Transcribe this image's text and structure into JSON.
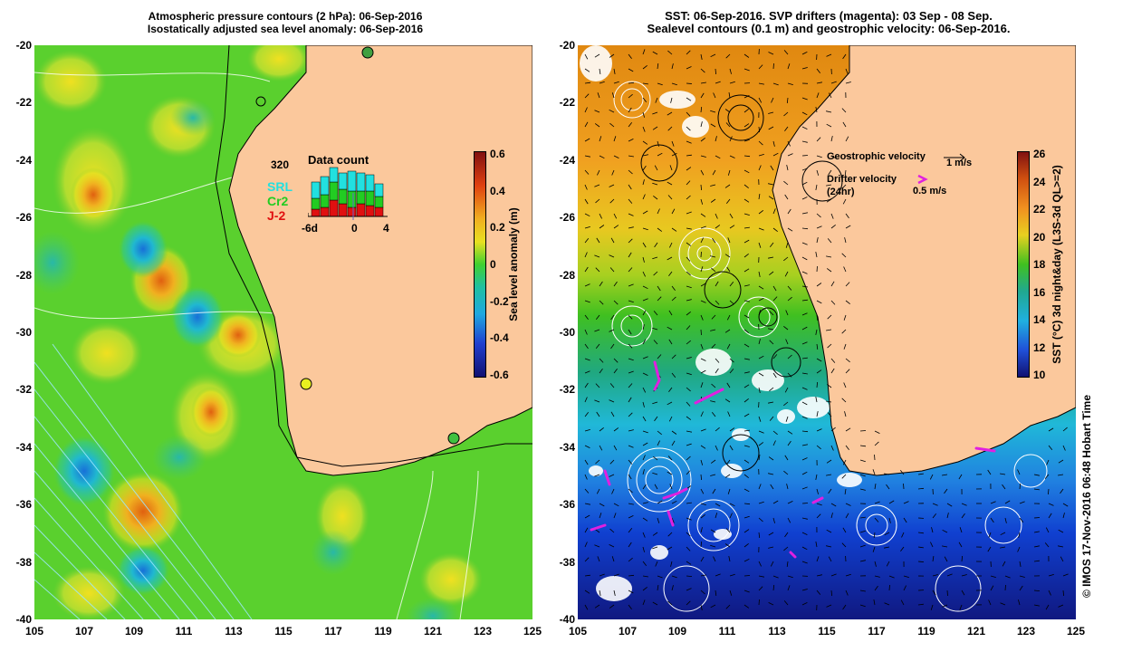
{
  "left_panel": {
    "title_line1": "Atmospheric pressure contours (2 hPa): 06-Sep-2016",
    "title_line2": "Isostatically adjusted sea level anomaly: 06-Sep-2016",
    "y_ticks": [
      "-20",
      "-22",
      "-24",
      "-26",
      "-28",
      "-30",
      "-32",
      "-34",
      "-36",
      "-38",
      "-40"
    ],
    "x_ticks": [
      "105",
      "107",
      "109",
      "111",
      "113",
      "115",
      "117",
      "119",
      "121",
      "123",
      "125"
    ],
    "colorbar": {
      "label": "Sea level anomaly (m)",
      "ticks": [
        "0.6",
        "0.4",
        "0.2",
        "0",
        "-0.2",
        "-0.4",
        "-0.6"
      ],
      "range": [
        -0.6,
        0.6
      ]
    },
    "inset": {
      "title": "Data count",
      "max_label": "320",
      "series": [
        {
          "name": "SRL",
          "color": "#22e0e0"
        },
        {
          "name": "Cr2",
          "color": "#22cc22"
        },
        {
          "name": "J-2",
          "color": "#e01010"
        }
      ],
      "x_labels": [
        "-6d",
        "0",
        "4"
      ]
    },
    "colors": {
      "land": "#fbc89c",
      "ocean_base": "#5ad02e"
    }
  },
  "right_panel": {
    "title_line1": "SST: 06-Sep-2016. SVP drifters (magenta): 03 Sep - 08 Sep.",
    "title_line2": "Sealevel contours (0.1 m) and geostrophic velocity: 06-Sep-2016.",
    "y_ticks": [
      "-20",
      "-22",
      "-24",
      "-26",
      "-28",
      "-30",
      "-32",
      "-34",
      "-36",
      "-38",
      "-40"
    ],
    "x_ticks": [
      "105",
      "107",
      "109",
      "111",
      "113",
      "115",
      "117",
      "119",
      "121",
      "123",
      "125"
    ],
    "legend": {
      "geostrophic_label": "Geostrophic velocity",
      "geostrophic_scale": "1 m/s",
      "drifter_label": "Drifter velocity",
      "drifter_sublabel": "(24hr)",
      "drifter_scale": "0.5 m/s"
    },
    "colorbar": {
      "label": "SST (°C) 3d night&day (L3S-3d QL>=2)",
      "ticks": [
        "26",
        "24",
        "22",
        "20",
        "18",
        "16",
        "14",
        "12",
        "10"
      ],
      "range": [
        10,
        26
      ]
    },
    "colors": {
      "land": "#fbc89c",
      "drifter": "#e020e0"
    }
  },
  "footer": {
    "credit": "© IMOS 17-Nov-2016 06:48 Hobart Time"
  }
}
